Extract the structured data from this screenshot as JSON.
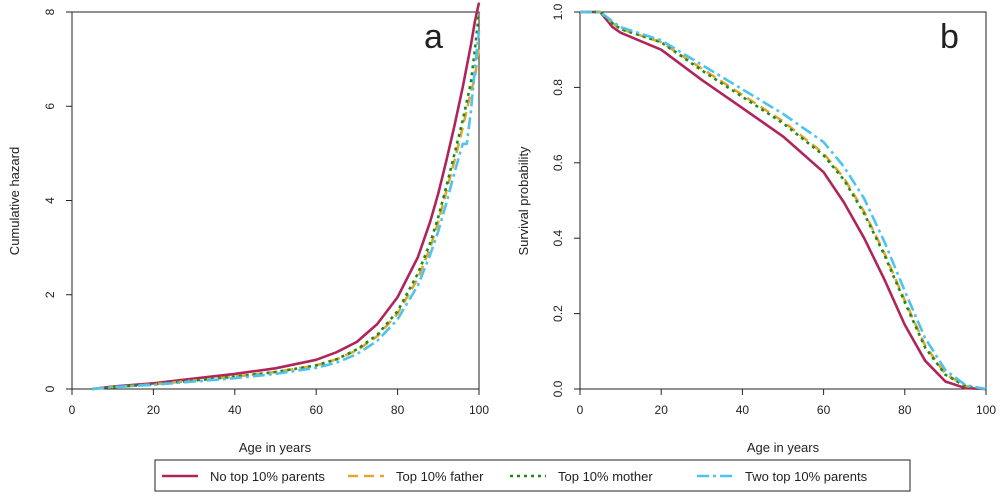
{
  "chart_data": [
    {
      "panel": "a",
      "type": "line",
      "title": "",
      "xlabel": "Age in years",
      "ylabel": "Cumulative hazard",
      "xlim": [
        0,
        100
      ],
      "ylim": [
        0,
        8
      ],
      "xticks": [
        0,
        20,
        40,
        60,
        80,
        100
      ],
      "yticks": [
        0,
        2,
        4,
        6,
        8
      ],
      "grid": false,
      "series": [
        {
          "name": "No top 10% parents",
          "color": "#b0245c",
          "dash": "solid",
          "x": [
            5,
            10,
            20,
            30,
            40,
            50,
            60,
            65,
            70,
            75,
            80,
            85,
            88,
            90,
            92,
            94,
            96,
            98,
            99,
            100
          ],
          "y": [
            0,
            0.05,
            0.12,
            0.22,
            0.32,
            0.44,
            0.62,
            0.78,
            1.0,
            1.38,
            1.95,
            2.8,
            3.55,
            4.15,
            4.85,
            5.6,
            6.4,
            7.3,
            7.8,
            8.2
          ]
        },
        {
          "name": "Top 10% father",
          "color": "#e0a82e",
          "dash": "10,6",
          "x": [
            5,
            10,
            20,
            30,
            40,
            50,
            60,
            65,
            70,
            75,
            80,
            85,
            88,
            90,
            92,
            94,
            96,
            98,
            99,
            100
          ],
          "y": [
            0,
            0.04,
            0.1,
            0.18,
            0.26,
            0.36,
            0.5,
            0.63,
            0.82,
            1.12,
            1.6,
            2.35,
            3.0,
            3.55,
            4.2,
            4.85,
            5.55,
            6.3,
            6.6,
            7.3
          ]
        },
        {
          "name": "Top 10% mother",
          "color": "#1e8a1e",
          "dash": "3,4",
          "x": [
            5,
            10,
            20,
            30,
            40,
            50,
            60,
            65,
            70,
            75,
            80,
            85,
            88,
            90,
            92,
            94,
            96,
            98,
            99,
            100
          ],
          "y": [
            0,
            0.04,
            0.1,
            0.18,
            0.26,
            0.36,
            0.5,
            0.63,
            0.84,
            1.15,
            1.65,
            2.45,
            3.1,
            3.65,
            4.3,
            5.0,
            5.7,
            6.5,
            7.2,
            8.0
          ]
        },
        {
          "name": "Two top 10% parents",
          "color": "#4ec3ee",
          "dash": "12,4,3,4",
          "x": [
            5,
            10,
            20,
            30,
            40,
            50,
            60,
            65,
            70,
            75,
            80,
            85,
            88,
            90,
            92,
            94,
            96,
            97,
            98,
            99,
            100
          ],
          "y": [
            0,
            0.04,
            0.09,
            0.16,
            0.23,
            0.32,
            0.45,
            0.56,
            0.74,
            1.02,
            1.48,
            2.2,
            2.85,
            3.35,
            3.95,
            4.6,
            5.2,
            5.2,
            5.9,
            6.8,
            7.6
          ]
        }
      ]
    },
    {
      "panel": "b",
      "type": "line",
      "title": "",
      "xlabel": "Age in years",
      "ylabel": "Survival probability",
      "xlim": [
        0,
        100
      ],
      "ylim": [
        0,
        1
      ],
      "xticks": [
        0,
        20,
        40,
        60,
        80,
        100
      ],
      "yticks": [
        0.0,
        0.2,
        0.4,
        0.6,
        0.8,
        1.0
      ],
      "ytick_labels": [
        "0.0",
        "0.2",
        "0.4",
        "0.6",
        "0.8",
        "1.0"
      ],
      "grid": false,
      "series": [
        {
          "name": "No top 10% parents",
          "color": "#b0245c",
          "dash": "solid",
          "x": [
            0,
            5,
            8,
            10,
            20,
            30,
            40,
            50,
            60,
            65,
            70,
            75,
            80,
            85,
            90,
            95,
            100
          ],
          "y": [
            1.0,
            1.0,
            0.96,
            0.945,
            0.9,
            0.82,
            0.745,
            0.67,
            0.575,
            0.495,
            0.4,
            0.29,
            0.17,
            0.075,
            0.02,
            0.002,
            0.0
          ]
        },
        {
          "name": "Top 10% father",
          "color": "#e0a82e",
          "dash": "10,6",
          "x": [
            0,
            5,
            8,
            10,
            20,
            30,
            40,
            50,
            60,
            65,
            70,
            75,
            80,
            85,
            90,
            95,
            100
          ],
          "y": [
            1.0,
            1.0,
            0.97,
            0.955,
            0.92,
            0.85,
            0.78,
            0.71,
            0.625,
            0.56,
            0.47,
            0.36,
            0.235,
            0.115,
            0.04,
            0.008,
            0.0
          ]
        },
        {
          "name": "Top 10% mother",
          "color": "#1e8a1e",
          "dash": "3,4",
          "x": [
            0,
            5,
            8,
            10,
            20,
            30,
            40,
            50,
            60,
            65,
            70,
            75,
            80,
            85,
            90,
            95,
            100
          ],
          "y": [
            1.0,
            1.0,
            0.97,
            0.955,
            0.92,
            0.845,
            0.775,
            0.705,
            0.62,
            0.555,
            0.465,
            0.355,
            0.23,
            0.11,
            0.038,
            0.007,
            0.0
          ]
        },
        {
          "name": "Two top 10% parents",
          "color": "#4ec3ee",
          "dash": "12,4,3,4",
          "x": [
            0,
            5,
            8,
            10,
            20,
            30,
            40,
            50,
            60,
            65,
            70,
            75,
            80,
            85,
            90,
            95,
            100
          ],
          "y": [
            1.0,
            1.0,
            0.975,
            0.96,
            0.925,
            0.86,
            0.795,
            0.73,
            0.655,
            0.59,
            0.505,
            0.39,
            0.26,
            0.135,
            0.05,
            0.01,
            0.0
          ]
        }
      ]
    }
  ],
  "legend": {
    "placement": "bottom",
    "items": [
      {
        "label": "No top 10% parents",
        "color": "#b0245c",
        "dash": "solid"
      },
      {
        "label": "Top 10% father",
        "color": "#e0a82e",
        "dash": "10,6"
      },
      {
        "label": "Top 10% mother",
        "color": "#1e8a1e",
        "dash": "3,4"
      },
      {
        "label": "Two top 10% parents",
        "color": "#4ec3ee",
        "dash": "12,4,3,4"
      }
    ]
  }
}
